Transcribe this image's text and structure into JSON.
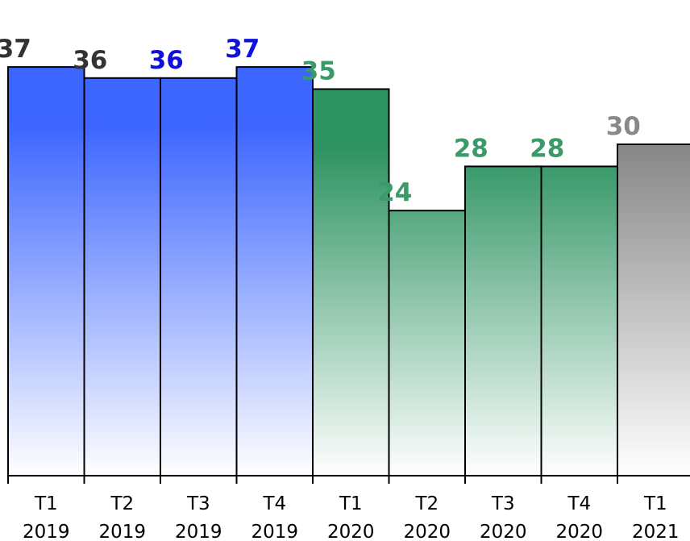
{
  "chart_data": {
    "type": "bar",
    "categories": [
      [
        "T1",
        "2019"
      ],
      [
        "T2",
        "2019"
      ],
      [
        "T3",
        "2019"
      ],
      [
        "T4",
        "2019"
      ],
      [
        "T1",
        "2020"
      ],
      [
        "T2",
        "2020"
      ],
      [
        "T3",
        "2020"
      ],
      [
        "T4",
        "2020"
      ],
      [
        "T1",
        "2021"
      ]
    ],
    "values": [
      37,
      36,
      36,
      37,
      35,
      24,
      28,
      28,
      30
    ],
    "value_labels": [
      "37",
      "36",
      "36",
      "37",
      "35",
      "24",
      "28",
      "28",
      "30"
    ],
    "ylim": [
      0,
      40
    ],
    "grid": false,
    "bar_style": [
      {
        "fill": "blue",
        "label_color": "#333333"
      },
      {
        "fill": "blue",
        "label_color": "#333333"
      },
      {
        "fill": "blue",
        "label_color": "#1010dd"
      },
      {
        "fill": "blue",
        "label_color": "#1010dd"
      },
      {
        "fill": "green",
        "label_color": "#3a9a68"
      },
      {
        "fill": "green",
        "label_color": "#3a9a68"
      },
      {
        "fill": "green",
        "label_color": "#3a9a68"
      },
      {
        "fill": "green",
        "label_color": "#3a9a68"
      },
      {
        "fill": "gray",
        "label_color": "#888888"
      }
    ],
    "colors": {
      "blue": "#3d66ff",
      "green": "#2f9463",
      "gray": "#808080"
    }
  }
}
